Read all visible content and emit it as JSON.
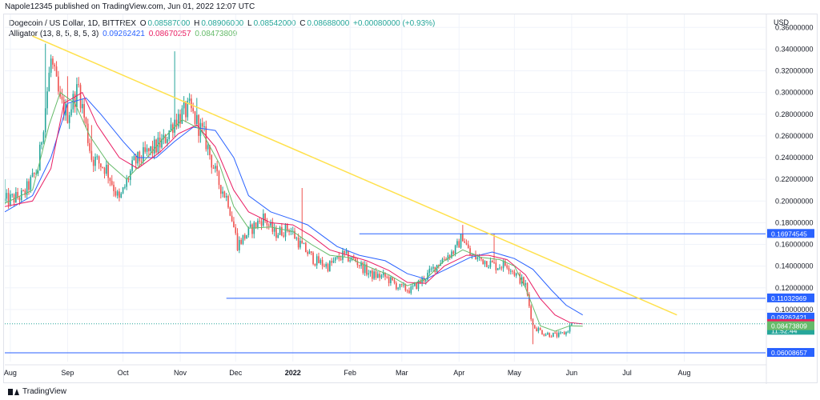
{
  "header": {
    "publish_line": "Napole12345 published on TradingView.com, Jun 01, 2022 12:07 UTC"
  },
  "legend": {
    "symbol": "Dogecoin / US Dollar, 1D, BITTREX",
    "ohlc": {
      "o_label": "O",
      "o": "0.08587000",
      "h_label": "H",
      "h": "0.08906000",
      "l_label": "L",
      "l": "0.08542000",
      "c_label": "C",
      "c": "0.08688000",
      "change": "+0.00080000 (+0.93%)"
    },
    "indicator": "Alligator (13, 8, 5, 8, 5, 3)",
    "jaw": "0.09262421",
    "teeth": "0.08670257",
    "lips": "0.08473809"
  },
  "footer": {
    "brand": "TradingView"
  },
  "chart_data": {
    "type": "candlestick",
    "currency_label": "USD",
    "y_ticks": [
      "0.36000000",
      "0.34000000",
      "0.32000000",
      "0.30000000",
      "0.28000000",
      "0.26000000",
      "0.24000000",
      "0.22000000",
      "0.20000000",
      "0.18000000",
      "0.16000000",
      "0.14000000",
      "0.12000000",
      "0.10000000"
    ],
    "ylim": [
      0.052,
      0.372
    ],
    "x_ticks": [
      {
        "label": "Aug",
        "day": -17,
        "bold": false
      },
      {
        "label": "Sep",
        "day": 14,
        "bold": false
      },
      {
        "label": "Oct",
        "day": 44,
        "bold": false
      },
      {
        "label": "Nov",
        "day": 75,
        "bold": false
      },
      {
        "label": "Dec",
        "day": 105,
        "bold": false
      },
      {
        "label": "2022",
        "day": 136,
        "bold": true
      },
      {
        "label": "Feb",
        "day": 167,
        "bold": false
      },
      {
        "label": "Mar",
        "day": 195,
        "bold": false
      },
      {
        "label": "Apr",
        "day": 226,
        "bold": false
      },
      {
        "label": "May",
        "day": 256,
        "bold": false
      },
      {
        "label": "Jun",
        "day": 287,
        "bold": false
      },
      {
        "label": "Jul",
        "day": 317,
        "bold": false
      },
      {
        "label": "Aug",
        "day": 348,
        "bold": false
      }
    ],
    "xlim": [
      -20,
      392
    ],
    "colors": {
      "up": "#26a69a",
      "down": "#ef5350",
      "jaw": "#2962ff",
      "teeth": "#e91e63",
      "lips": "#66bb6a",
      "trend": "#ffe14d",
      "level": "#2962ff"
    },
    "price_labels": [
      {
        "text": "0.16974545",
        "value": 0.16974545,
        "color": "#2962ff"
      },
      {
        "text": "0.11032969",
        "value": 0.11032969,
        "color": "#2962ff"
      },
      {
        "text": "0.09262421",
        "value": 0.09262421,
        "color": "#2962ff"
      },
      {
        "text": "0.08688000",
        "value": 0.08688,
        "color": "#26a69a"
      },
      {
        "text": "11:52:44",
        "value": 0.0805,
        "color": "#26a69a"
      },
      {
        "text": "0.08670257",
        "value": 0.08670257,
        "color": "#e91e63"
      },
      {
        "text": "0.08473809",
        "value": 0.08473809,
        "color": "#66bb6a"
      },
      {
        "text": "0.06008657",
        "value": 0.06008657,
        "color": "#2962ff"
      }
    ],
    "horizontal_levels": [
      {
        "value": 0.16974545,
        "x_start": 172,
        "x_end": 392
      },
      {
        "value": 0.11032969,
        "x_start": 100,
        "x_end": 392
      },
      {
        "value": 0.06008657,
        "x_start": -20,
        "x_end": 392
      }
    ],
    "trendline": {
      "x1": -5,
      "y1": 0.352,
      "x2": 344,
      "y2": 0.095
    },
    "anchors": [
      [
        -20,
        0.2
      ],
      [
        -10,
        0.205
      ],
      [
        -2,
        0.23
      ],
      [
        5,
        0.33
      ],
      [
        10,
        0.29
      ],
      [
        14,
        0.28
      ],
      [
        20,
        0.305
      ],
      [
        27,
        0.24
      ],
      [
        35,
        0.23
      ],
      [
        42,
        0.2
      ],
      [
        50,
        0.235
      ],
      [
        58,
        0.245
      ],
      [
        66,
        0.255
      ],
      [
        72,
        0.275
      ],
      [
        76,
        0.28
      ],
      [
        80,
        0.285
      ],
      [
        88,
        0.26
      ],
      [
        95,
        0.22
      ],
      [
        101,
        0.2
      ],
      [
        106,
        0.16
      ],
      [
        114,
        0.175
      ],
      [
        120,
        0.185
      ],
      [
        126,
        0.17
      ],
      [
        134,
        0.175
      ],
      [
        140,
        0.16
      ],
      [
        148,
        0.145
      ],
      [
        155,
        0.14
      ],
      [
        163,
        0.15
      ],
      [
        170,
        0.145
      ],
      [
        178,
        0.132
      ],
      [
        186,
        0.13
      ],
      [
        194,
        0.12
      ],
      [
        200,
        0.118
      ],
      [
        208,
        0.13
      ],
      [
        216,
        0.145
      ],
      [
        224,
        0.155
      ],
      [
        228,
        0.168
      ],
      [
        232,
        0.15
      ],
      [
        240,
        0.145
      ],
      [
        246,
        0.14
      ],
      [
        252,
        0.142
      ],
      [
        258,
        0.13
      ],
      [
        262,
        0.122
      ],
      [
        266,
        0.085
      ],
      [
        272,
        0.078
      ],
      [
        280,
        0.076
      ],
      [
        284,
        0.079
      ],
      [
        287,
        0.0869
      ]
    ],
    "spikes": [
      [
        -20,
        0.22
      ],
      [
        2,
        0.345
      ],
      [
        14,
        0.315
      ],
      [
        27,
        0.27
      ],
      [
        72,
        0.338
      ],
      [
        80,
        0.298
      ],
      [
        84,
        0.295
      ],
      [
        106,
        0.175
      ],
      [
        141,
        0.212
      ],
      [
        228,
        0.178
      ],
      [
        245,
        0.17
      ],
      [
        266,
        0.068
      ]
    ],
    "jaw_series": [
      [
        -20,
        0.19
      ],
      [
        -5,
        0.205
      ],
      [
        5,
        0.24
      ],
      [
        14,
        0.29
      ],
      [
        24,
        0.295
      ],
      [
        32,
        0.28
      ],
      [
        44,
        0.255
      ],
      [
        52,
        0.24
      ],
      [
        62,
        0.24
      ],
      [
        72,
        0.255
      ],
      [
        82,
        0.268
      ],
      [
        94,
        0.265
      ],
      [
        104,
        0.24
      ],
      [
        112,
        0.205
      ],
      [
        124,
        0.19
      ],
      [
        136,
        0.183
      ],
      [
        144,
        0.178
      ],
      [
        152,
        0.168
      ],
      [
        160,
        0.158
      ],
      [
        172,
        0.15
      ],
      [
        186,
        0.145
      ],
      [
        198,
        0.133
      ],
      [
        208,
        0.128
      ],
      [
        220,
        0.138
      ],
      [
        232,
        0.148
      ],
      [
        244,
        0.153
      ],
      [
        256,
        0.147
      ],
      [
        266,
        0.137
      ],
      [
        276,
        0.118
      ],
      [
        284,
        0.104
      ],
      [
        293,
        0.095
      ]
    ],
    "teeth_series": [
      [
        -20,
        0.195
      ],
      [
        -5,
        0.2
      ],
      [
        5,
        0.23
      ],
      [
        12,
        0.29
      ],
      [
        22,
        0.3
      ],
      [
        30,
        0.27
      ],
      [
        42,
        0.24
      ],
      [
        52,
        0.23
      ],
      [
        64,
        0.245
      ],
      [
        74,
        0.262
      ],
      [
        84,
        0.27
      ],
      [
        94,
        0.25
      ],
      [
        104,
        0.21
      ],
      [
        112,
        0.19
      ],
      [
        124,
        0.18
      ],
      [
        136,
        0.178
      ],
      [
        146,
        0.168
      ],
      [
        156,
        0.155
      ],
      [
        166,
        0.15
      ],
      [
        176,
        0.145
      ],
      [
        188,
        0.136
      ],
      [
        198,
        0.125
      ],
      [
        208,
        0.124
      ],
      [
        218,
        0.14
      ],
      [
        230,
        0.15
      ],
      [
        242,
        0.15
      ],
      [
        252,
        0.146
      ],
      [
        262,
        0.132
      ],
      [
        270,
        0.11
      ],
      [
        278,
        0.095
      ],
      [
        286,
        0.088
      ],
      [
        293,
        0.0867
      ]
    ],
    "lips_series": [
      [
        -20,
        0.198
      ],
      [
        -5,
        0.21
      ],
      [
        4,
        0.27
      ],
      [
        10,
        0.3
      ],
      [
        18,
        0.29
      ],
      [
        26,
        0.26
      ],
      [
        36,
        0.235
      ],
      [
        46,
        0.22
      ],
      [
        56,
        0.238
      ],
      [
        66,
        0.258
      ],
      [
        76,
        0.275
      ],
      [
        86,
        0.266
      ],
      [
        96,
        0.235
      ],
      [
        104,
        0.195
      ],
      [
        112,
        0.175
      ],
      [
        124,
        0.176
      ],
      [
        136,
        0.172
      ],
      [
        146,
        0.16
      ],
      [
        156,
        0.15
      ],
      [
        166,
        0.148
      ],
      [
        176,
        0.14
      ],
      [
        188,
        0.132
      ],
      [
        198,
        0.122
      ],
      [
        208,
        0.128
      ],
      [
        218,
        0.145
      ],
      [
        228,
        0.155
      ],
      [
        238,
        0.148
      ],
      [
        248,
        0.146
      ],
      [
        256,
        0.14
      ],
      [
        262,
        0.12
      ],
      [
        270,
        0.085
      ],
      [
        278,
        0.08
      ],
      [
        286,
        0.085
      ],
      [
        293,
        0.0847
      ]
    ]
  }
}
